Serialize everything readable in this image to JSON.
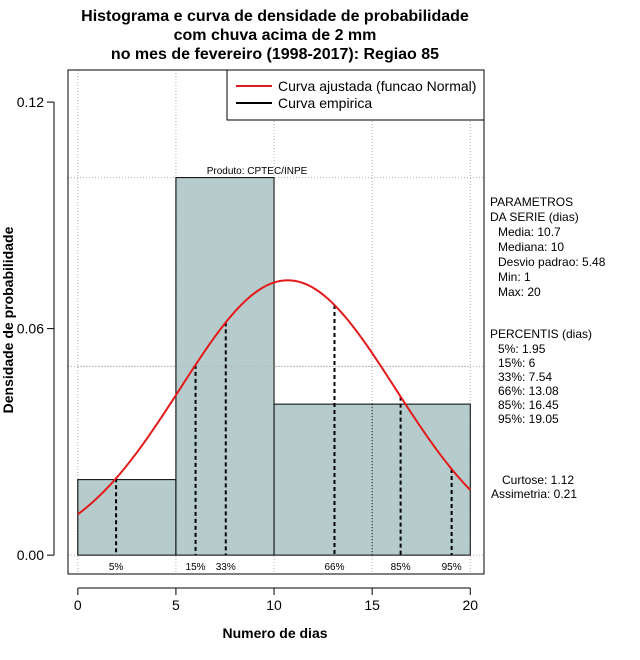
{
  "chart_data": {
    "type": "bar",
    "title_lines": [
      "Histograma e curva de densidade de probabilidade",
      "com chuva acima de 2 mm",
      "no mes de fevereiro (1998-2017): Regiao 85"
    ],
    "xlabel": "Numero de dias",
    "ylabel": "Densidade de probabilidade",
    "xlim": [
      -0.5,
      20.7
    ],
    "ylim": [
      -0.005,
      0.1285
    ],
    "x_ticks": [
      0,
      5,
      10,
      15,
      20
    ],
    "x_tick_labels": [
      "0",
      "5",
      "10",
      "15",
      "20"
    ],
    "y_ticks": [
      0.0,
      0.06,
      0.12
    ],
    "y_tick_labels": [
      "0.00",
      "0.06",
      "0.12"
    ],
    "grid": true,
    "bins": [
      {
        "start": 0,
        "end": 5,
        "density": 0.02
      },
      {
        "start": 5,
        "end": 10,
        "density": 0.1
      },
      {
        "start": 10,
        "end": 20,
        "density": 0.04
      }
    ],
    "normal_curve": {
      "mean": 10.7,
      "sd": 5.48,
      "x_range": [
        0,
        20
      ]
    },
    "percentile_lines": [
      {
        "label": "5%",
        "x": 1.95
      },
      {
        "label": "15%",
        "x": 6
      },
      {
        "label": "33%",
        "x": 7.54
      },
      {
        "label": "66%",
        "x": 13.08
      },
      {
        "label": "85%",
        "x": 16.45
      },
      {
        "label": "95%",
        "x": 19.05
      }
    ],
    "legend": {
      "position": "top-right",
      "entries": [
        {
          "label": "Curva ajustada (funcao Normal)",
          "color": "#e31a1c"
        },
        {
          "label": "Curva empirica",
          "color": "#000000"
        }
      ]
    },
    "annotation": "Produto: CPTEC/INPE",
    "side_panel": {
      "params_title": [
        "PARAMETROS",
        "DA SERIE (dias)"
      ],
      "params": [
        "Media: 10.7",
        "Mediana: 10",
        "Desvio padrao: 5.48",
        "Min: 1",
        "Max: 20"
      ],
      "percentis_title": "PERCENTIS (dias)",
      "percentis": [
        "5%: 1.95",
        "15%: 6",
        "33%: 7.54",
        "66%: 13.08",
        "85%: 16.45",
        "95%: 19.05"
      ],
      "curtose": "Curtose: 1.12",
      "assimetria": "Assimetria: 0.21"
    },
    "colors": {
      "bar_fill": "#b6cbcb",
      "curve": "#e31a1c",
      "grid": "#b0b0b0"
    }
  }
}
